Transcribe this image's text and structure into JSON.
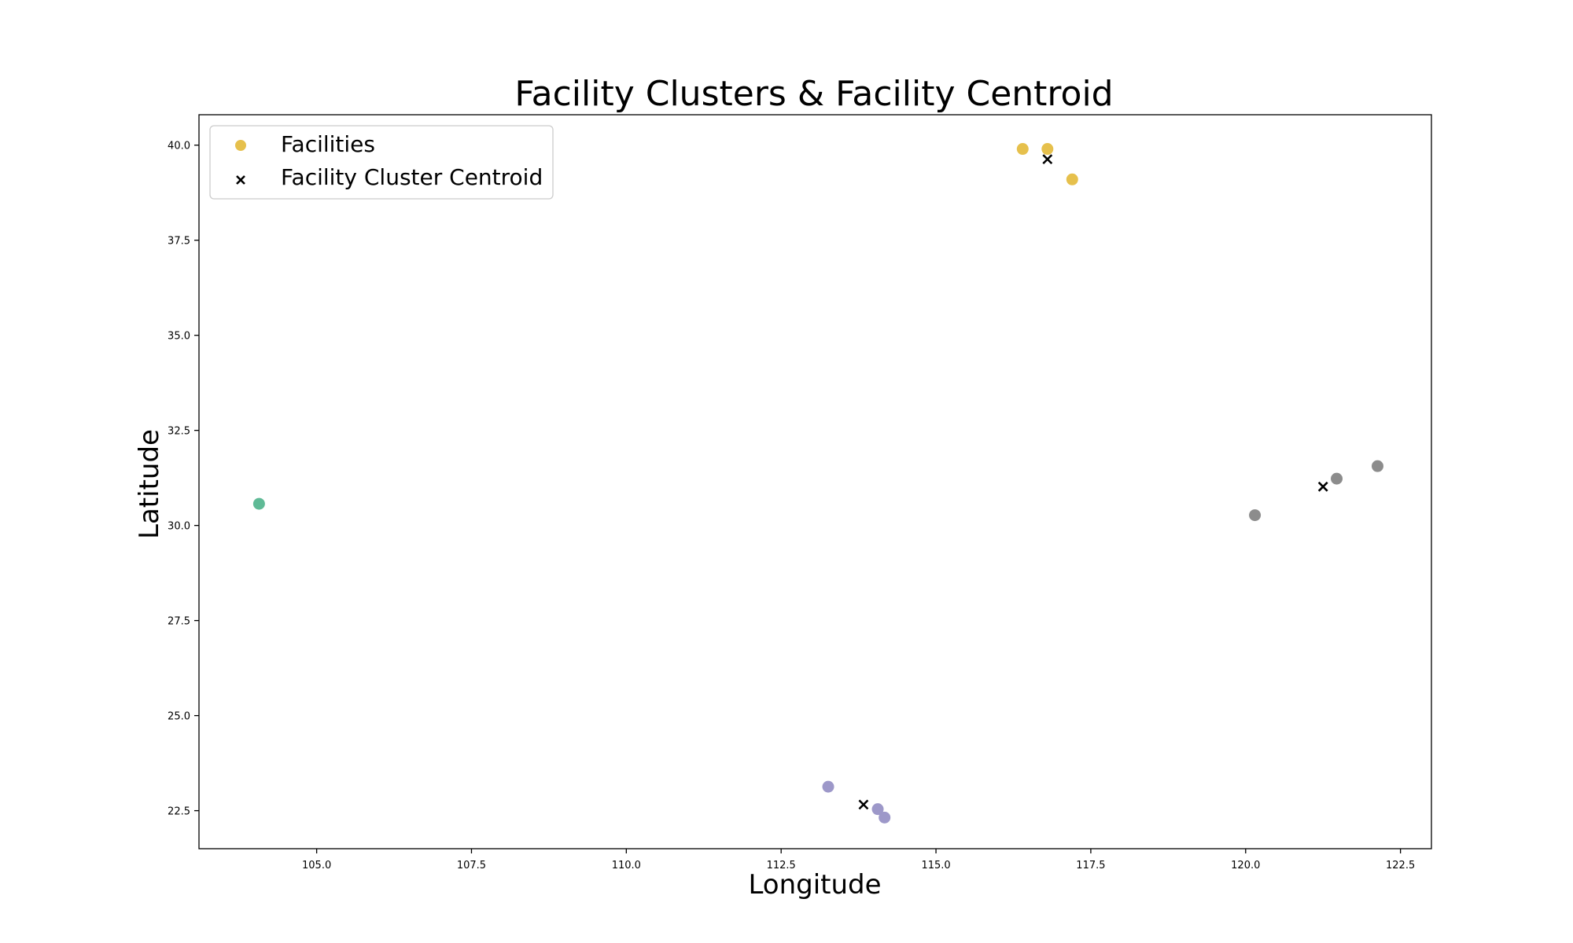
{
  "chart_data": {
    "type": "scatter",
    "title": "Facility Clusters & Facility Centroid",
    "xlabel": "Longitude",
    "ylabel": "Latitude",
    "xlim": [
      103.1,
      123.0
    ],
    "ylim": [
      21.5,
      40.8
    ],
    "xticks": [
      105.0,
      107.5,
      110.0,
      112.5,
      115.0,
      117.5,
      120.0,
      122.5
    ],
    "yticks": [
      22.5,
      25.0,
      27.5,
      30.0,
      32.5,
      35.0,
      37.5,
      40.0
    ],
    "tick_decimals": 1,
    "grid": false,
    "legend": {
      "placement": "top-left",
      "entries": [
        {
          "label": "Facilities",
          "marker": "circle",
          "color": "#e6c04c"
        },
        {
          "label": "Facility Cluster Centroid",
          "marker": "x",
          "color": "#000000"
        }
      ]
    },
    "series": [
      {
        "name": "Facilities",
        "marker": "circle",
        "points": [
          {
            "x": 116.4,
            "y": 39.9,
            "color": "#e6c04c"
          },
          {
            "x": 116.8,
            "y": 39.9,
            "color": "#e6c04c"
          },
          {
            "x": 117.2,
            "y": 39.1,
            "color": "#e6c04c"
          },
          {
            "x": 104.07,
            "y": 30.57,
            "color": "#5fba96"
          },
          {
            "x": 121.47,
            "y": 31.23,
            "color": "#8c8c8c"
          },
          {
            "x": 122.13,
            "y": 31.56,
            "color": "#8c8c8c"
          },
          {
            "x": 120.15,
            "y": 30.27,
            "color": "#8c8c8c"
          },
          {
            "x": 113.26,
            "y": 23.13,
            "color": "#9d98c9"
          },
          {
            "x": 114.06,
            "y": 22.54,
            "color": "#9d98c9"
          },
          {
            "x": 114.17,
            "y": 22.32,
            "color": "#9d98c9"
          }
        ]
      },
      {
        "name": "Facility Cluster Centroid",
        "marker": "x",
        "points": [
          {
            "x": 116.8,
            "y": 39.63,
            "color": "#000000"
          },
          {
            "x": 121.25,
            "y": 31.02,
            "color": "#000000"
          },
          {
            "x": 113.83,
            "y": 22.66,
            "color": "#000000"
          }
        ]
      }
    ]
  }
}
